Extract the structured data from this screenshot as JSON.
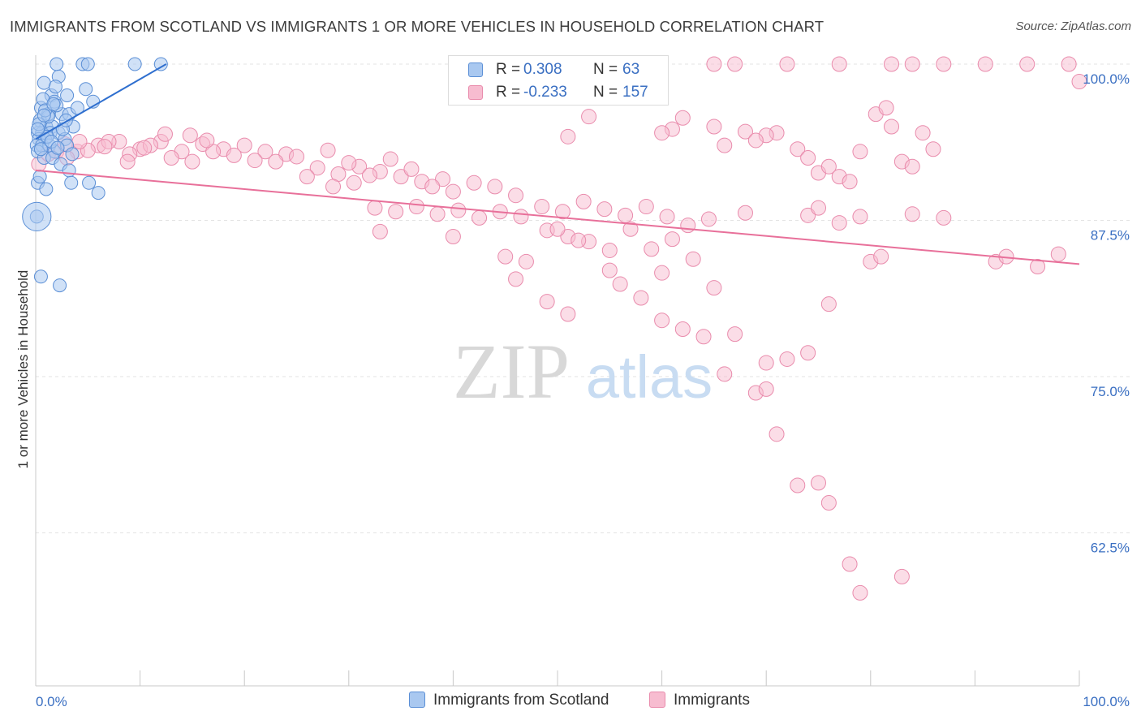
{
  "title": "IMMIGRANTS FROM SCOTLAND VS IMMIGRANTS 1 OR MORE VEHICLES IN HOUSEHOLD CORRELATION CHART",
  "source": "Source: ZipAtlas.com",
  "watermark": {
    "zip": "ZIP",
    "atlas": "atlas"
  },
  "legend": [
    {
      "r_label": "R =",
      "r_value": "0.308",
      "n_label": "N =",
      "n_value": "63"
    },
    {
      "r_label": "R =",
      "r_value": "-0.233",
      "n_label": "N =",
      "n_value": "157"
    }
  ],
  "colors": {
    "blue_fill": "#a9c8f0",
    "blue_stroke": "#5b8fd6",
    "blue_line": "#2f6fcf",
    "pink_fill": "#f7bcd0",
    "pink_stroke": "#e98bac",
    "pink_line": "#e8709a",
    "tick_label": "#3a6fc2",
    "grid": "#e3e3e3"
  },
  "chart_data": {
    "type": "scatter",
    "title": "IMMIGRANTS FROM SCOTLAND VS IMMIGRANTS 1 OR MORE VEHICLES IN HOUSEHOLD CORRELATION CHART",
    "xlabel": "",
    "ylabel": "1 or more Vehicles in Household",
    "xlim": [
      0,
      100
    ],
    "ylim": [
      50,
      101.5
    ],
    "x_tick_labels": [
      "0.0%",
      "100.0%"
    ],
    "y_ticks": [
      100,
      87.5,
      75,
      62.5
    ],
    "y_tick_labels": [
      "100.0%",
      "87.5%",
      "75.0%",
      "62.5%"
    ],
    "grid": "horizontal dashed",
    "legend_position": "bottom-center",
    "series": [
      {
        "name": "Immigrants from Scotland",
        "trend": {
          "x": [
            0,
            12.5
          ],
          "y": [
            94,
            100
          ]
        },
        "points": [
          [
            2.0,
            100
          ],
          [
            4.5,
            100
          ],
          [
            5.0,
            100
          ],
          [
            9.5,
            100
          ],
          [
            12.0,
            100
          ],
          [
            2.2,
            99
          ],
          [
            0.8,
            98.5
          ],
          [
            4.8,
            98
          ],
          [
            1.5,
            97.5
          ],
          [
            5.5,
            97
          ],
          [
            1.8,
            97
          ],
          [
            0.5,
            96.5
          ],
          [
            1.2,
            96
          ],
          [
            2.5,
            96
          ],
          [
            3.2,
            96
          ],
          [
            0.4,
            95.5
          ],
          [
            1.0,
            95
          ],
          [
            1.6,
            95
          ],
          [
            3.6,
            95
          ],
          [
            0.2,
            94.5
          ],
          [
            0.6,
            94.5
          ],
          [
            1.4,
            94.5
          ],
          [
            2.2,
            94.5
          ],
          [
            0.3,
            94
          ],
          [
            0.9,
            94
          ],
          [
            2.8,
            94
          ],
          [
            0.1,
            93.5
          ],
          [
            0.6,
            93.5
          ],
          [
            1.3,
            93.5
          ],
          [
            3.0,
            93.5
          ],
          [
            1.8,
            93
          ],
          [
            0.2,
            93
          ],
          [
            0.8,
            92.5
          ],
          [
            1.6,
            92.5
          ],
          [
            2.4,
            92
          ],
          [
            3.2,
            91.5
          ],
          [
            0.2,
            90.5
          ],
          [
            3.4,
            90.5
          ],
          [
            5.1,
            90.5
          ],
          [
            6.0,
            89.7
          ],
          [
            0.4,
            91
          ],
          [
            1.0,
            90
          ],
          [
            0.1,
            87.8
          ],
          [
            0.5,
            83
          ],
          [
            2.3,
            82.3
          ],
          [
            1.2,
            95.8
          ],
          [
            2.0,
            96.7
          ],
          [
            0.7,
            97.2
          ],
          [
            1.9,
            98.2
          ],
          [
            3.0,
            97.5
          ],
          [
            0.3,
            95.2
          ],
          [
            1.1,
            94.2
          ],
          [
            2.6,
            94.8
          ],
          [
            0.9,
            96.3
          ],
          [
            4.0,
            96.5
          ],
          [
            0.5,
            93.2
          ],
          [
            1.5,
            93.8
          ],
          [
            2.9,
            95.5
          ],
          [
            0.2,
            94.8
          ],
          [
            1.7,
            96.8
          ],
          [
            3.5,
            92.8
          ],
          [
            0.8,
            95.9
          ],
          [
            2.1,
            93.3
          ]
        ],
        "point_sizes": {
          "default": 1,
          "large": [
            [
              0.1,
              87.8,
              2.2
            ]
          ]
        }
      },
      {
        "name": "Immigrants",
        "trend": {
          "x": [
            0,
            100
          ],
          "y": [
            91.5,
            84
          ]
        },
        "points": [
          [
            65,
            100
          ],
          [
            67,
            100
          ],
          [
            72,
            100
          ],
          [
            77,
            100
          ],
          [
            82,
            100
          ],
          [
            84,
            100
          ],
          [
            87,
            100
          ],
          [
            91,
            100
          ],
          [
            95,
            100
          ],
          [
            99,
            100
          ],
          [
            100,
            98.6
          ],
          [
            53,
            95.8
          ],
          [
            62,
            95.7
          ],
          [
            65,
            95
          ],
          [
            61,
            94.8
          ],
          [
            60,
            94.5
          ],
          [
            71,
            94.5
          ],
          [
            70,
            94.3
          ],
          [
            51,
            94.2
          ],
          [
            2,
            93
          ],
          [
            4,
            93
          ],
          [
            6,
            93.5
          ],
          [
            8,
            93.8
          ],
          [
            10,
            93.2
          ],
          [
            12,
            93.8
          ],
          [
            14,
            93
          ],
          [
            16,
            93.6
          ],
          [
            18,
            93.2
          ],
          [
            20,
            93.5
          ],
          [
            22,
            93
          ],
          [
            24,
            92.8
          ],
          [
            3,
            92.5
          ],
          [
            5,
            93.1
          ],
          [
            7,
            93.8
          ],
          [
            9,
            92.8
          ],
          [
            11,
            93.5
          ],
          [
            13,
            92.5
          ],
          [
            15,
            92.2
          ],
          [
            17,
            93
          ],
          [
            19,
            92.7
          ],
          [
            21,
            92.3
          ],
          [
            23,
            92.2
          ],
          [
            25,
            92.6
          ],
          [
            27,
            91.7
          ],
          [
            29,
            91.2
          ],
          [
            31,
            91.8
          ],
          [
            33,
            91.4
          ],
          [
            35,
            91
          ],
          [
            37,
            90.6
          ],
          [
            39,
            90.8
          ],
          [
            0.3,
            92
          ],
          [
            1.2,
            92.8
          ],
          [
            2.8,
            93.6
          ],
          [
            4.2,
            93.8
          ],
          [
            6.6,
            93.4
          ],
          [
            8.8,
            92.2
          ],
          [
            10.4,
            93.3
          ],
          [
            12.4,
            94.4
          ],
          [
            14.8,
            94.3
          ],
          [
            16.4,
            93.9
          ],
          [
            28,
            93.1
          ],
          [
            30,
            92.1
          ],
          [
            32,
            91.1
          ],
          [
            34,
            92.4
          ],
          [
            36,
            91.6
          ],
          [
            38,
            90.2
          ],
          [
            40,
            89.8
          ],
          [
            42,
            90.5
          ],
          [
            44,
            90.2
          ],
          [
            46,
            89.5
          ],
          [
            26,
            91
          ],
          [
            28.5,
            90.2
          ],
          [
            30.5,
            90.5
          ],
          [
            32.5,
            88.5
          ],
          [
            34.5,
            88.2
          ],
          [
            36.5,
            88.6
          ],
          [
            38.5,
            88
          ],
          [
            40.5,
            88.3
          ],
          [
            42.5,
            87.7
          ],
          [
            44.5,
            88.2
          ],
          [
            46.5,
            87.8
          ],
          [
            48.5,
            88.6
          ],
          [
            50.5,
            88.2
          ],
          [
            52.5,
            89
          ],
          [
            54.5,
            88.4
          ],
          [
            56.5,
            87.9
          ],
          [
            58.5,
            88.6
          ],
          [
            60.5,
            87.8
          ],
          [
            62.5,
            87.1
          ],
          [
            64.5,
            87.6
          ],
          [
            45,
            84.6
          ],
          [
            47,
            84.2
          ],
          [
            49,
            86.7
          ],
          [
            51,
            86.2
          ],
          [
            53,
            85.8
          ],
          [
            55,
            85.1
          ],
          [
            57,
            86.8
          ],
          [
            59,
            85.2
          ],
          [
            61,
            86
          ],
          [
            63,
            84.4
          ],
          [
            66,
            93.5
          ],
          [
            68,
            94.6
          ],
          [
            69,
            93.9
          ],
          [
            73,
            93.2
          ],
          [
            74,
            92.5
          ],
          [
            75,
            91.3
          ],
          [
            76,
            91.8
          ],
          [
            77,
            91
          ],
          [
            78,
            90.6
          ],
          [
            79,
            93
          ],
          [
            68,
            88.1
          ],
          [
            74,
            87.9
          ],
          [
            75,
            88.5
          ],
          [
            77,
            87.3
          ],
          [
            79,
            87.8
          ],
          [
            80,
            84.2
          ],
          [
            81,
            84.6
          ],
          [
            84,
            88
          ],
          [
            87,
            87.7
          ],
          [
            92,
            84.2
          ],
          [
            93,
            84.6
          ],
          [
            96,
            83.8
          ],
          [
            98,
            84.8
          ],
          [
            80.5,
            96
          ],
          [
            81.5,
            96.5
          ],
          [
            82,
            95
          ],
          [
            83,
            92.2
          ],
          [
            84,
            91.8
          ],
          [
            85,
            94.5
          ],
          [
            86,
            93.2
          ],
          [
            33,
            86.6
          ],
          [
            40,
            86.2
          ],
          [
            46,
            82.8
          ],
          [
            49,
            81
          ],
          [
            51,
            80
          ],
          [
            56,
            82.4
          ],
          [
            58,
            81.3
          ],
          [
            60,
            79.5
          ],
          [
            62,
            78.8
          ],
          [
            64,
            78.2
          ],
          [
            67,
            78.4
          ],
          [
            69,
            73.7
          ],
          [
            70,
            74
          ],
          [
            71,
            70.4
          ],
          [
            73,
            66.3
          ],
          [
            75,
            66.5
          ],
          [
            76,
            64.9
          ],
          [
            78,
            60
          ],
          [
            79,
            57.7
          ],
          [
            83,
            59
          ],
          [
            66,
            75.2
          ],
          [
            70,
            76.1
          ],
          [
            72,
            76.4
          ],
          [
            74,
            76.9
          ],
          [
            76,
            80.8
          ],
          [
            65,
            82.1
          ],
          [
            60,
            83.3
          ],
          [
            55,
            83.5
          ],
          [
            52,
            85.9
          ],
          [
            50,
            86.8
          ]
        ]
      }
    ]
  },
  "bottom_legend": [
    {
      "label": "Immigrants from Scotland"
    },
    {
      "label": "Immigrants"
    }
  ]
}
